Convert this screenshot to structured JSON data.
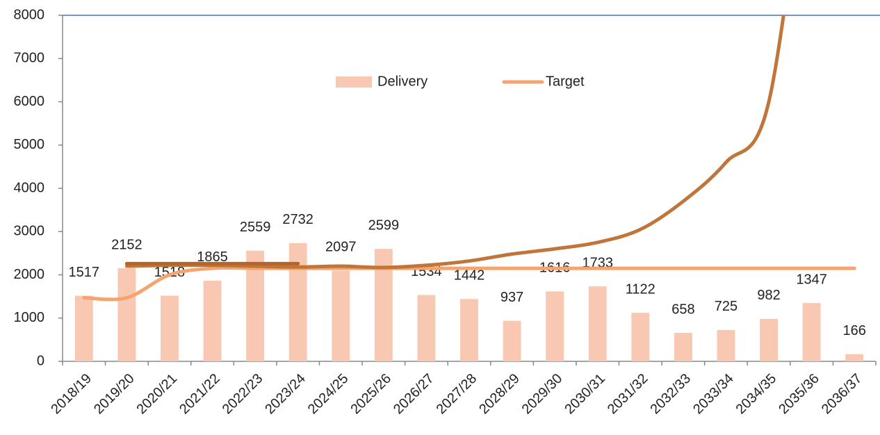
{
  "chart_data": {
    "type": "bar",
    "categories": [
      "2018/19",
      "2019/20",
      "2020/21",
      "2021/22",
      "2022/23",
      "2023/24",
      "2024/25",
      "2025/26",
      "2026/27",
      "2027/28",
      "2028/29",
      "2029/30",
      "2030/31",
      "2031/32",
      "2032/33",
      "2033/34",
      "2034/35",
      "2035/36",
      "2036/37"
    ],
    "series": [
      {
        "name": "Delivery",
        "type": "bar",
        "color": "#f8c8b2",
        "values": [
          1517,
          2152,
          1518,
          1865,
          2559,
          2732,
          2097,
          2599,
          1534,
          1442,
          937,
          1616,
          1733,
          1122,
          658,
          725,
          982,
          1347,
          166
        ]
      },
      {
        "name": "Target",
        "type": "line",
        "color": "#f4a46e",
        "values": [
          1470,
          1470,
          2000,
          2150,
          2150,
          2150,
          2150,
          2150,
          2150,
          2150,
          2150,
          2150,
          2150,
          2150,
          2150,
          2150,
          2150,
          2150,
          2150
        ]
      },
      {
        "type": "line",
        "color": "#c0763a",
        "values": [
          null,
          2200,
          2220,
          2220,
          2200,
          2180,
          2200,
          2170,
          2220,
          2320,
          2480,
          2600,
          2750,
          3050,
          3700,
          4600,
          6000,
          13000,
          null
        ]
      },
      {
        "type": "line",
        "color": "#b5652c",
        "values": [
          null,
          2260,
          2260,
          2260,
          2260,
          2260,
          null,
          null,
          null,
          null,
          null,
          null,
          null,
          null,
          null,
          null,
          null,
          null,
          null
        ]
      }
    ],
    "ylim": [
      0,
      8000
    ],
    "yticks": [
      0,
      1000,
      2000,
      3000,
      4000,
      5000,
      6000,
      7000,
      8000
    ],
    "legend": "top"
  }
}
